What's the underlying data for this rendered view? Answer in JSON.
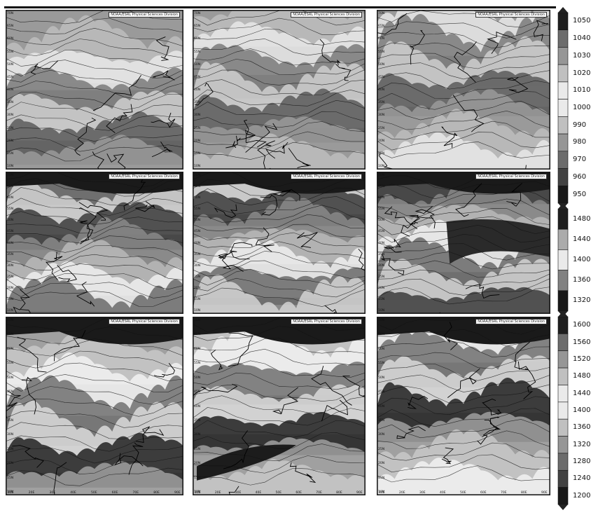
{
  "panels": [
    {
      "row": 0,
      "col": 0,
      "credit": "NOAA/ESRL Physical Sciences Division"
    },
    {
      "row": 0,
      "col": 1,
      "credit": "NOAA/ESRL Physical Sciences Division"
    },
    {
      "row": 0,
      "col": 2,
      "credit": "NOAA/ESRL Physical Sciences Division"
    },
    {
      "row": 1,
      "col": 0,
      "credit": "NOAA/ESRL Physical Sciences Division"
    },
    {
      "row": 1,
      "col": 1,
      "credit": "NOAA/ESRL Physical Sciences Division"
    },
    {
      "row": 1,
      "col": 2,
      "credit": "NOAA/ESRL Physical Sciences Division"
    },
    {
      "row": 2,
      "col": 0,
      "credit": "NOAA/ESRL Physical Sciences Division"
    },
    {
      "row": 2,
      "col": 1,
      "credit": "NOAA/ESRL Physical Sciences Division"
    },
    {
      "row": 2,
      "col": 2,
      "credit": "NOAA/ESRL Physical Sciences Division"
    }
  ],
  "lat_ticks": [
    "70N",
    "65N",
    "60N",
    "55N",
    "50N",
    "45N",
    "40N",
    "35N",
    "30N",
    "25N",
    "20N",
    "15N",
    "10N"
  ],
  "lon_ticks": [
    "10E",
    "20E",
    "30E",
    "40E",
    "50E",
    "60E",
    "70E",
    "80E",
    "90E"
  ],
  "colorbars": [
    {
      "labels": [
        "1050",
        "1040",
        "1030",
        "1020",
        "1010",
        "1000",
        "990",
        "980",
        "970",
        "960",
        "950"
      ]
    },
    {
      "labels": [
        "1480",
        "1440",
        "1400",
        "1360",
        "1320"
      ]
    },
    {
      "labels": [
        "1600",
        "1560",
        "1520",
        "1480",
        "1440",
        "1400",
        "1360",
        "1320",
        "1280",
        "1240",
        "1200"
      ]
    }
  ]
}
